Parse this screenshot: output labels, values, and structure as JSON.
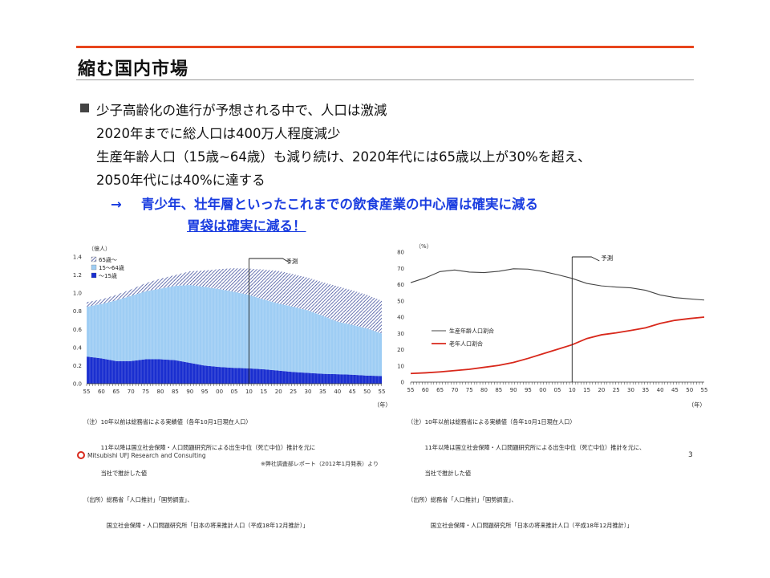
{
  "slide": {
    "title": "縮む国内市場",
    "bullets": [
      "少子高齢化の進行が予想される中で、人口は激減",
      "2020年までに総人口は400万人程度減少",
      "生産年齢人口（15歳~64歳）も減り続け、2020年代には65歳以上が30%を超え、",
      "2050年代には40%に達する"
    ],
    "arrow_symbol": "→",
    "arrow_text": "青少年、壮年層といったこれまでの飲食産業の中心層は確実に減る",
    "emphasis": "胃袋は確実に減る！",
    "footer_company": "Mitsubishi UFJ Research and Consulting",
    "footer_source": "※弊社調査部レポート（2012年1月発表）より",
    "page_number": "3",
    "accent_color": "#e8451d",
    "highlight_color": "#1a3de0"
  },
  "notes_left": {
    "year_unit": "（年）",
    "lines": [
      "（注）10年以前は総務省による実績値（各年10月1日現在人口）",
      "　　　11年以降は国立社会保障・人口問題研究所による出生中位（死亡中位）推計を元に",
      "　　　当社で推計した値",
      "（出所）総務省「人口推計」「国勢調査」、",
      "　　　　国立社会保障・人口問題研究所「日本の将来推計人口（平成18年12月推計）」"
    ]
  },
  "notes_right": {
    "year_unit": "（年）",
    "lines": [
      "（注）10年以前は総務省による実績値（各年10月1日現在人口）",
      "　　　11年以降は国立社会保障・人口問題研究所による出生中位（死亡中位）推計を元に、",
      "　　　当社で推計した値",
      "（出所）総務省「人口推計」「国勢調査」、",
      "　　　　国立社会保障・人口問題研究所「日本の将来推計人口（平成18年12月推計）」"
    ]
  },
  "chart_data": [
    {
      "type": "area",
      "stacked": true,
      "ylabel": "（億人）",
      "ylim": [
        0,
        1.4
      ],
      "yticks": [
        "0.0",
        "0.2",
        "0.4",
        "0.6",
        "0.8",
        "1.0",
        "1.2",
        "1.4"
      ],
      "xticks": [
        "55",
        "60",
        "65",
        "70",
        "75",
        "80",
        "85",
        "90",
        "95",
        "00",
        "05",
        "10",
        "15",
        "20",
        "25",
        "30",
        "35",
        "40",
        "45",
        "50",
        "55"
      ],
      "x": [
        1955,
        1960,
        1965,
        1970,
        1975,
        1980,
        1985,
        1990,
        1995,
        2000,
        2005,
        2010,
        2015,
        2020,
        2025,
        2030,
        2035,
        2040,
        2045,
        2050,
        2055
      ],
      "forecast_start": 2010,
      "forecast_label": "予測",
      "series": [
        {
          "name": "～15歳",
          "color": "#1a2fd0",
          "values": [
            0.3,
            0.28,
            0.25,
            0.25,
            0.27,
            0.27,
            0.26,
            0.23,
            0.2,
            0.185,
            0.175,
            0.17,
            0.16,
            0.145,
            0.13,
            0.12,
            0.11,
            0.105,
            0.1,
            0.09,
            0.085
          ]
        },
        {
          "name": "15～64歳",
          "color": "#9ecdf4",
          "values": [
            0.55,
            0.6,
            0.67,
            0.72,
            0.75,
            0.78,
            0.82,
            0.86,
            0.87,
            0.86,
            0.84,
            0.81,
            0.77,
            0.74,
            0.72,
            0.69,
            0.64,
            0.58,
            0.55,
            0.52,
            0.47
          ]
        },
        {
          "name": "65歳～",
          "color": "#3b4a9a",
          "values": [
            0.05,
            0.05,
            0.06,
            0.07,
            0.09,
            0.11,
            0.12,
            0.15,
            0.18,
            0.22,
            0.26,
            0.29,
            0.33,
            0.36,
            0.36,
            0.36,
            0.37,
            0.39,
            0.38,
            0.37,
            0.36
          ]
        }
      ]
    },
    {
      "type": "line",
      "ylabel": "（%）",
      "ylim": [
        0,
        80
      ],
      "yticks": [
        "0",
        "10",
        "20",
        "30",
        "40",
        "50",
        "60",
        "70",
        "80"
      ],
      "xticks": [
        "55",
        "60",
        "65",
        "70",
        "75",
        "80",
        "85",
        "90",
        "95",
        "00",
        "05",
        "10",
        "15",
        "20",
        "25",
        "30",
        "35",
        "40",
        "45",
        "50",
        "55"
      ],
      "x": [
        1955,
        1960,
        1965,
        1970,
        1975,
        1980,
        1985,
        1990,
        1995,
        2000,
        2005,
        2010,
        2015,
        2020,
        2025,
        2030,
        2035,
        2040,
        2045,
        2050,
        2055
      ],
      "forecast_start": 2010,
      "forecast_label": "予測",
      "series": [
        {
          "name": "生産年齢人口割合",
          "color": "#444444",
          "values": [
            61.2,
            64.1,
            68.0,
            69.0,
            67.7,
            67.4,
            68.2,
            69.7,
            69.5,
            68.1,
            66.1,
            63.8,
            60.7,
            59.2,
            58.5,
            58.0,
            56.5,
            53.6,
            52.0,
            51.2,
            50.5
          ]
        },
        {
          "name": "老年人口割合",
          "color": "#d8281b",
          "values": [
            5.3,
            5.7,
            6.3,
            7.1,
            7.9,
            9.1,
            10.3,
            12.1,
            14.6,
            17.4,
            20.2,
            23.0,
            26.8,
            29.1,
            30.3,
            31.8,
            33.4,
            36.1,
            38.0,
            39.1,
            40.0
          ]
        }
      ]
    }
  ]
}
